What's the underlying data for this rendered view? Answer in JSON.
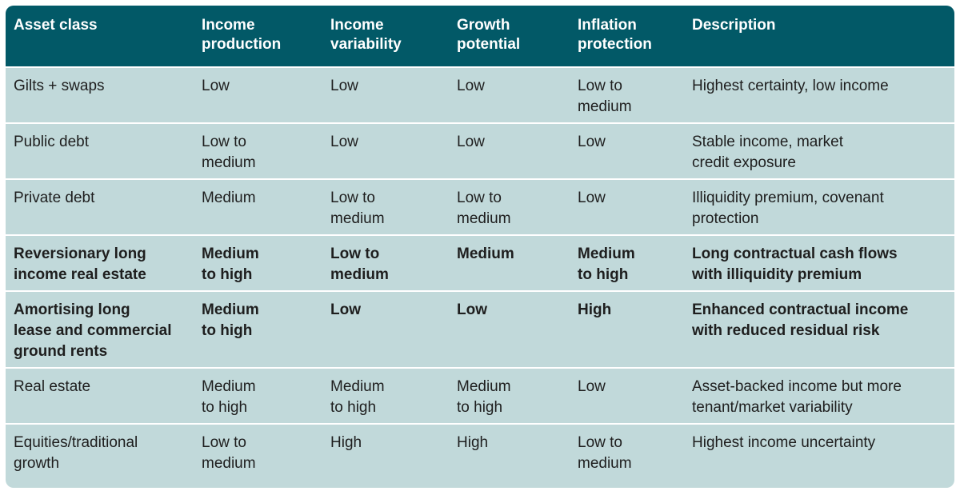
{
  "table": {
    "headers": [
      "Asset class",
      "Income\nproduction",
      "Income\nvariability",
      "Growth\npotential",
      "Inflation\nprotection",
      "Description"
    ],
    "rows": [
      {
        "bold": false,
        "cells": [
          "Gilts + swaps",
          "Low",
          "Low",
          "Low",
          "Low to\nmedium",
          "Highest certainty, low income"
        ]
      },
      {
        "bold": false,
        "cells": [
          "Public debt",
          "Low to\nmedium",
          "Low",
          "Low",
          "Low",
          "Stable income, market\ncredit exposure"
        ]
      },
      {
        "bold": false,
        "cells": [
          "Private debt",
          "Medium",
          "Low to\nmedium",
          "Low to\nmedium",
          "Low",
          "Illiquidity premium, covenant\nprotection"
        ]
      },
      {
        "bold": true,
        "cells": [
          "Reversionary long\nincome real estate",
          "Medium\nto high",
          "Low to\nmedium",
          "Medium",
          "Medium\nto high",
          "Long contractual cash flows\nwith illiquidity premium"
        ]
      },
      {
        "bold": true,
        "cells": [
          "Amortising long\nlease and commercial\nground rents",
          "Medium\nto high",
          "Low",
          "Low",
          "High",
          "Enhanced contractual income\nwith reduced residual risk"
        ]
      },
      {
        "bold": false,
        "cells": [
          "Real estate",
          "Medium\nto high",
          "Medium\nto high",
          "Medium\nto high",
          "Low",
          "Asset-backed income but more\ntenant/market variability"
        ]
      },
      {
        "bold": false,
        "cells": [
          "Equities/traditional\ngrowth",
          "Low to\nmedium",
          "High",
          "High",
          "Low to\nmedium",
          "Highest income uncertainty"
        ]
      }
    ]
  }
}
